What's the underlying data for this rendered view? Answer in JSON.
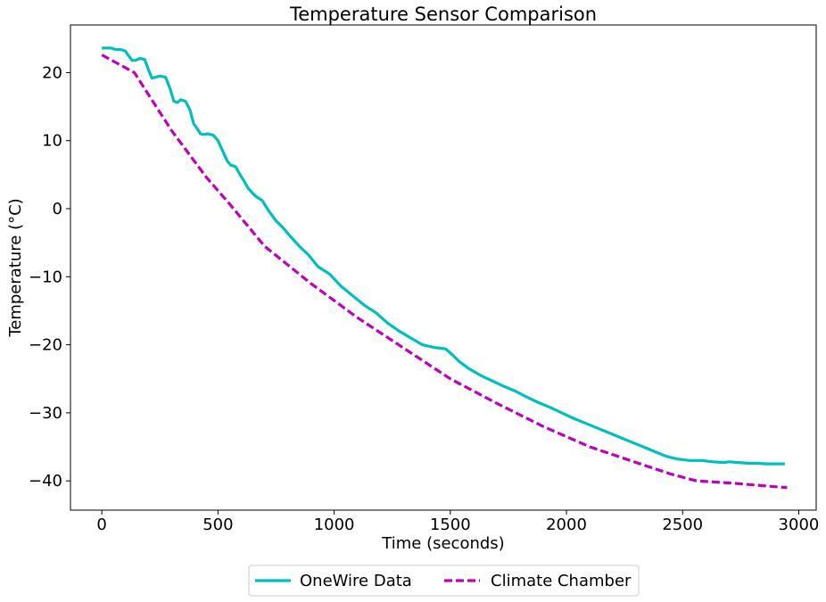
{
  "colors": {
    "background": "#ffffff",
    "axis": "#000000",
    "legend_border": "#cccccc"
  },
  "chart_data": {
    "type": "line",
    "title": "Temperature Sensor Comparison",
    "xlabel": "Time (seconds)",
    "ylabel": "Temperature (°C)",
    "xlim": [
      -135,
      3075
    ],
    "ylim": [
      -44.3,
      27
    ],
    "xticks": [
      0,
      500,
      1000,
      1500,
      2000,
      2500,
      3000
    ],
    "xtick_labels": [
      "0",
      "500",
      "1000",
      "1500",
      "2000",
      "2500",
      "3000"
    ],
    "yticks": [
      20,
      10,
      0,
      -10,
      -20,
      -30,
      -40
    ],
    "ytick_labels": [
      "20",
      "10",
      "0",
      "−10",
      "−20",
      "−30",
      "−40"
    ],
    "grid": false,
    "legend_position": "bottom-center-outside",
    "series": [
      {
        "name": "OneWire Data",
        "color": "#00bfbf",
        "style": "solid",
        "x": [
          0,
          40,
          60,
          80,
          100,
          115,
          130,
          145,
          165,
          185,
          200,
          215,
          230,
          250,
          275,
          295,
          310,
          325,
          340,
          360,
          380,
          395,
          410,
          425,
          440,
          455,
          480,
          500,
          520,
          540,
          555,
          575,
          595,
          610,
          630,
          660,
          690,
          720,
          750,
          780,
          810,
          850,
          890,
          930,
          980,
          1030,
          1080,
          1130,
          1180,
          1230,
          1280,
          1330,
          1380,
          1430,
          1480,
          1510,
          1540,
          1580,
          1630,
          1680,
          1730,
          1780,
          1830,
          1880,
          1930,
          1980,
          2030,
          2080,
          2130,
          2180,
          2230,
          2280,
          2330,
          2380,
          2430,
          2480,
          2530,
          2580,
          2630,
          2680,
          2700,
          2740,
          2780,
          2820,
          2860,
          2900,
          2940
        ],
        "y": [
          23.6,
          23.6,
          23.4,
          23.4,
          23.2,
          22.5,
          21.8,
          21.8,
          22.1,
          21.9,
          20.5,
          19.2,
          19.3,
          19.5,
          19.3,
          17.5,
          15.8,
          15.6,
          16.0,
          15.8,
          14.5,
          12.5,
          11.8,
          11.0,
          10.9,
          11.0,
          10.8,
          10.0,
          8.5,
          7.0,
          6.4,
          6.2,
          5.0,
          4.2,
          3.0,
          1.9,
          1.2,
          -0.4,
          -1.8,
          -2.8,
          -4.0,
          -5.5,
          -6.8,
          -8.5,
          -9.6,
          -11.4,
          -12.8,
          -14.2,
          -15.3,
          -16.8,
          -18.0,
          -19.0,
          -20.0,
          -20.4,
          -20.6,
          -21.5,
          -22.5,
          -23.5,
          -24.5,
          -25.3,
          -26.1,
          -26.8,
          -27.7,
          -28.5,
          -29.2,
          -30.0,
          -30.8,
          -31.5,
          -32.2,
          -32.9,
          -33.6,
          -34.3,
          -35.0,
          -35.7,
          -36.4,
          -36.8,
          -37.0,
          -37.0,
          -37.2,
          -37.3,
          -37.2,
          -37.3,
          -37.4,
          -37.4,
          -37.5,
          -37.5,
          -37.5
        ]
      },
      {
        "name": "Climate Chamber",
        "color": "#bf00bf",
        "style": "dashed",
        "x": [
          0,
          140,
          300,
          450,
          550,
          700,
          900,
          1100,
          1300,
          1500,
          1700,
          1900,
          2100,
          2300,
          2450,
          2560,
          2700,
          2950
        ],
        "y": [
          22.6,
          20.0,
          11.5,
          4.6,
          0.7,
          -5.5,
          -11.0,
          -16.0,
          -20.5,
          -25.0,
          -28.6,
          -32.0,
          -35.0,
          -37.3,
          -39.0,
          -40.0,
          -40.3,
          -41.0
        ]
      }
    ]
  }
}
